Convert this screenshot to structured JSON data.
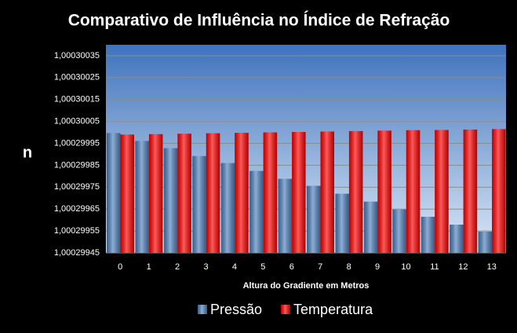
{
  "chart_data": {
    "type": "bar",
    "title": "Comparativo de Influência no Índice de Refração",
    "y_label": "n",
    "x_label": "Altura do Gradiente em Metros",
    "categories": [
      "0",
      "1",
      "2",
      "3",
      "4",
      "5",
      "6",
      "7",
      "8",
      "9",
      "10",
      "11",
      "12",
      "13"
    ],
    "series": [
      {
        "name": "Pressão",
        "color": "#4f81bd",
        "values": [
          1.000299997,
          1.000299961,
          1.000299928,
          1.000299892,
          1.00029986,
          1.000299824,
          1.000299788,
          1.000299756,
          1.00029972,
          1.000299684,
          1.000299648,
          1.000299615,
          1.000299579,
          1.000299547
        ]
      },
      {
        "name": "Temperatura",
        "color": "#ff0000",
        "values": [
          1.00029999,
          1.000299992,
          1.000299994,
          1.000299996,
          1.000299998,
          1.0003,
          1.000300002,
          1.000300004,
          1.000300006,
          1.000300008,
          1.00030001,
          1.000300011,
          1.000300013,
          1.000300015
        ]
      }
    ],
    "ylim": [
      1.00029945,
      1.0003004
    ],
    "yticks": [
      {
        "value": 1.00029945,
        "label": "1,00029945"
      },
      {
        "value": 1.00029955,
        "label": "1,00029955"
      },
      {
        "value": 1.00029965,
        "label": "1,00029965"
      },
      {
        "value": 1.00029975,
        "label": "1,00029975"
      },
      {
        "value": 1.00029985,
        "label": "1,00029985"
      },
      {
        "value": 1.00029995,
        "label": "1,00029995"
      },
      {
        "value": 1.00030005,
        "label": "1,00030005"
      },
      {
        "value": 1.00030015,
        "label": "1,00030015"
      },
      {
        "value": 1.00030025,
        "label": "1,00030025"
      },
      {
        "value": 1.00030035,
        "label": "1,00030035"
      }
    ],
    "grid": true,
    "legend": "bottom"
  }
}
